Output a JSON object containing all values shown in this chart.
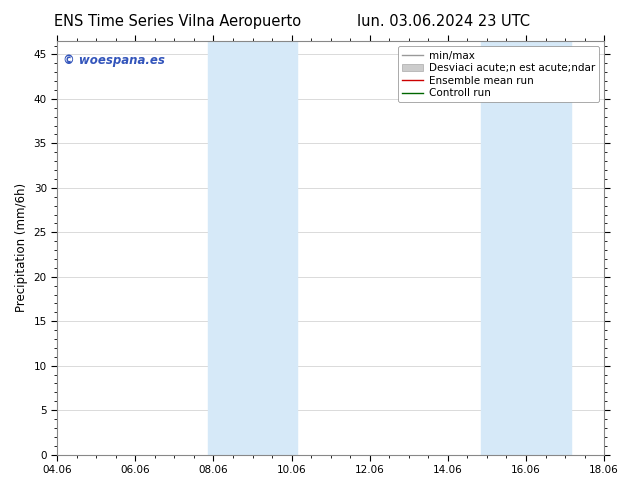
{
  "title_left": "ENS Time Series Vilna Aeropuerto",
  "title_right": "lun. 03.06.2024 23 UTC",
  "ylabel": "Precipitation (mm/6h)",
  "xlim": [
    0,
    14
  ],
  "ylim": [
    0,
    46.5
  ],
  "yticks": [
    0,
    5,
    10,
    15,
    20,
    25,
    30,
    35,
    40,
    45
  ],
  "xtick_labels": [
    "04.06",
    "06.06",
    "08.06",
    "10.06",
    "12.06",
    "14.06",
    "16.06",
    "18.06"
  ],
  "xtick_positions": [
    0,
    2,
    4,
    6,
    8,
    10,
    12,
    14
  ],
  "shaded_bands": [
    {
      "xmin": 3.85,
      "xmax": 4.15
    },
    {
      "xmin": 5.85,
      "xmax": 6.15
    },
    {
      "xmin": 10.85,
      "xmax": 11.15
    },
    {
      "xmin": 12.85,
      "xmax": 13.15
    }
  ],
  "band_color": "#d6e9f8",
  "band_alpha": 1.0,
  "bg_color": "#ffffff",
  "plot_bg_color": "#ffffff",
  "grid_color": "#cccccc",
  "watermark": "© woespana.es",
  "watermark_color": "#3355bb",
  "title_fontsize": 10.5,
  "axis_fontsize": 8.5,
  "tick_fontsize": 7.5,
  "legend_fontsize": 7.5
}
